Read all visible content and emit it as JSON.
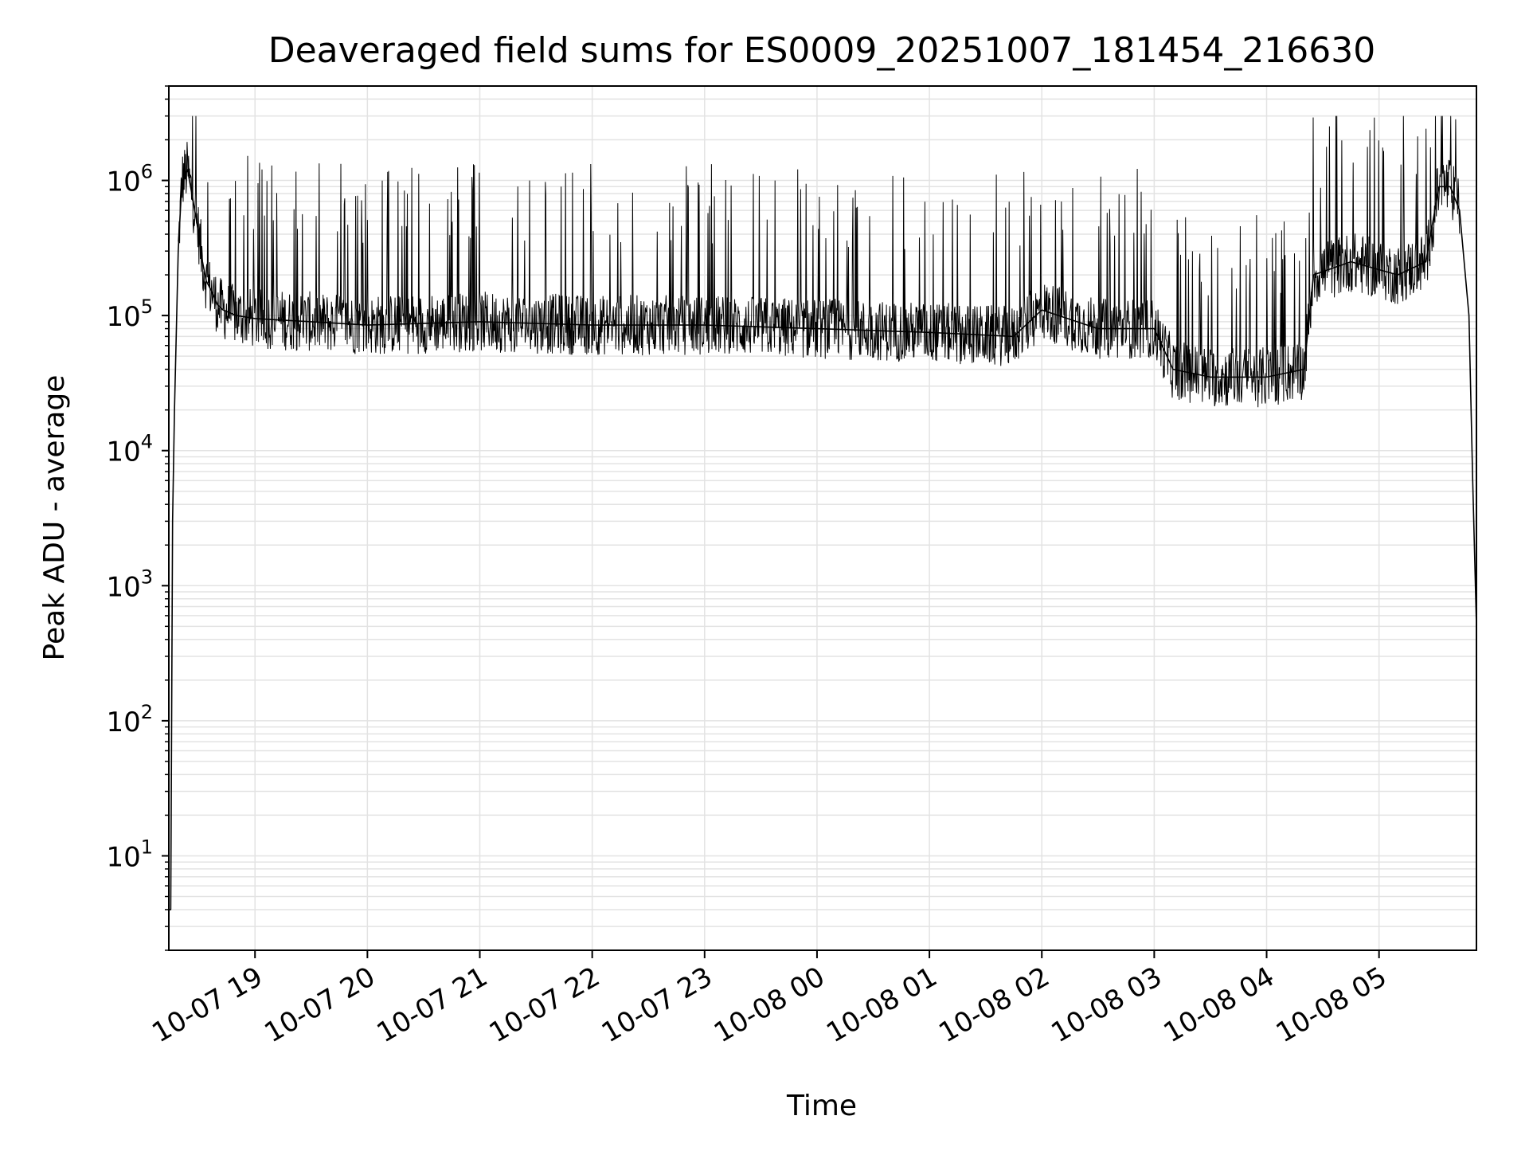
{
  "chart_data": {
    "type": "line",
    "title": "Deaveraged field sums for ES0009_20251007_181454_216630",
    "xlabel": "Time",
    "ylabel": "Peak ADU - average",
    "yscale": "log",
    "ylim": [
      2,
      5000000
    ],
    "xlim": [
      "2025-10-07 18:14",
      "2025-10-08 05:52"
    ],
    "grid": true,
    "legend": "none",
    "x_ticks": [
      {
        "time": "2025-10-07 19:00",
        "label": "10-07 19"
      },
      {
        "time": "2025-10-07 20:00",
        "label": "10-07 20"
      },
      {
        "time": "2025-10-07 21:00",
        "label": "10-07 21"
      },
      {
        "time": "2025-10-07 22:00",
        "label": "10-07 22"
      },
      {
        "time": "2025-10-07 23:00",
        "label": "10-07 23"
      },
      {
        "time": "2025-10-08 00:00",
        "label": "10-08 00"
      },
      {
        "time": "2025-10-08 01:00",
        "label": "10-08 01"
      },
      {
        "time": "2025-10-08 02:00",
        "label": "10-08 02"
      },
      {
        "time": "2025-10-08 03:00",
        "label": "10-08 03"
      },
      {
        "time": "2025-10-08 04:00",
        "label": "10-08 04"
      },
      {
        "time": "2025-10-08 05:00",
        "label": "10-08 05"
      }
    ],
    "y_ticks": [
      {
        "value": 10,
        "base": "10",
        "exp": "1"
      },
      {
        "value": 100,
        "base": "10",
        "exp": "2"
      },
      {
        "value": 1000,
        "base": "10",
        "exp": "3"
      },
      {
        "value": 10000,
        "base": "10",
        "exp": "4"
      },
      {
        "value": 100000,
        "base": "10",
        "exp": "5"
      },
      {
        "value": 1000000,
        "base": "10",
        "exp": "6"
      }
    ],
    "series": [
      {
        "line_color": "#000000",
        "x": [
          "2025-10-07 18:14",
          "2025-10-07 18:15",
          "2025-10-07 18:16",
          "2025-10-07 18:17",
          "2025-10-07 18:19",
          "2025-10-07 18:21",
          "2025-10-07 18:24",
          "2025-10-07 18:27",
          "2025-10-07 18:30",
          "2025-10-07 18:32",
          "2025-10-07 18:34",
          "2025-10-07 18:37",
          "2025-10-07 18:40",
          "2025-10-07 18:43",
          "2025-10-07 18:50",
          "2025-10-07 19:00",
          "2025-10-07 19:30",
          "2025-10-07 20:00",
          "2025-10-07 21:00",
          "2025-10-07 22:00",
          "2025-10-07 23:00",
          "2025-10-08 00:00",
          "2025-10-08 01:00",
          "2025-10-08 01:45",
          "2025-10-08 02:00",
          "2025-10-08 02:30",
          "2025-10-08 03:00",
          "2025-10-08 03:10",
          "2025-10-08 03:30",
          "2025-10-08 04:00",
          "2025-10-08 04:20",
          "2025-10-08 04:25",
          "2025-10-08 04:45",
          "2025-10-08 05:10",
          "2025-10-08 05:25",
          "2025-10-08 05:32",
          "2025-10-08 05:38",
          "2025-10-08 05:43",
          "2025-10-08 05:48",
          "2025-10-08 05:50",
          "2025-10-08 05:52"
        ],
        "y": [
          4,
          4,
          3000,
          20000,
          300000,
          1000000,
          1200000,
          700000,
          400000,
          250000,
          180000,
          150000,
          120000,
          110000,
          100000,
          95000,
          90000,
          85000,
          90000,
          85000,
          85000,
          80000,
          75000,
          70000,
          110000,
          80000,
          80000,
          40000,
          35000,
          35000,
          40000,
          200000,
          250000,
          200000,
          250000,
          900000,
          900000,
          600000,
          100000,
          6000,
          500
        ]
      }
    ]
  }
}
